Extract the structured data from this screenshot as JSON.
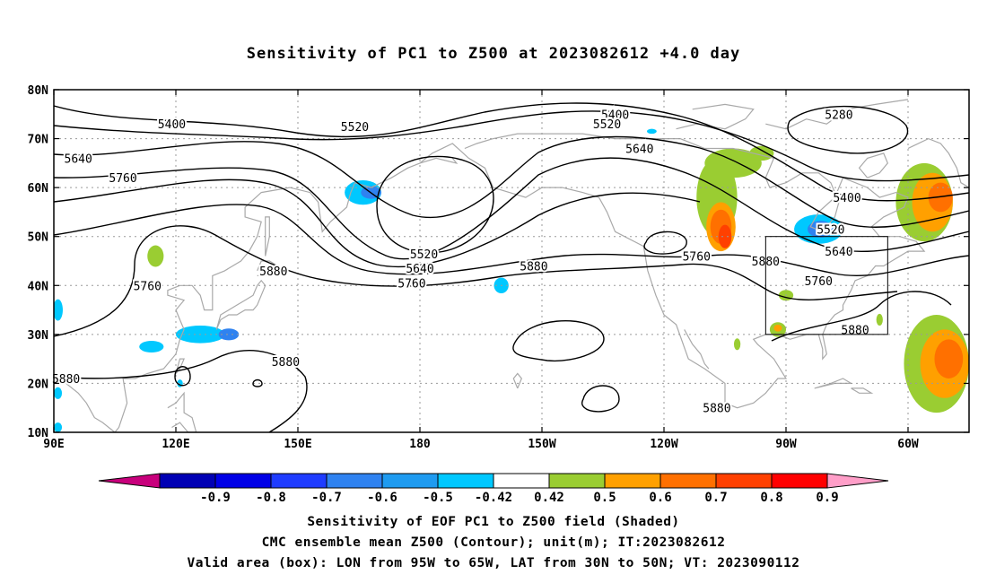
{
  "title": "Sensitivity of PC1 to Z500 at 2023082612 +4.0 day",
  "map": {
    "lat_axis": [
      "80N",
      "70N",
      "60N",
      "50N",
      "40N",
      "30N",
      "20N",
      "10N"
    ],
    "lon_axis": [
      "90E",
      "120E",
      "150E",
      "180",
      "150W",
      "120W",
      "90W",
      "60W"
    ],
    "lon_range": [
      90,
      315
    ],
    "lat_range": [
      10,
      80
    ],
    "valid_box": {
      "lon_min": 265,
      "lon_max": 295,
      "lat_min": 30,
      "lat_max": 50
    },
    "contour_color": "#000000",
    "coastline_color": "#a9a9a9",
    "grid": "dotted"
  },
  "chart_data": {
    "type": "heatmap",
    "shaded_field": "Sensitivity of EOF PC1 to Z500 field",
    "contour_field": "CMC ensemble mean Z500",
    "contour_labels": [
      {
        "value": "5400",
        "lon": 119,
        "lat": 73
      },
      {
        "value": "5520",
        "lon": 164,
        "lat": 72.5
      },
      {
        "value": "5640",
        "lon": 96,
        "lat": 66
      },
      {
        "value": "5760",
        "lon": 107,
        "lat": 62
      },
      {
        "value": "5760",
        "lon": 113,
        "lat": 40
      },
      {
        "value": "5880",
        "lon": 144,
        "lat": 43
      },
      {
        "value": "5880",
        "lon": 93,
        "lat": 21
      },
      {
        "value": "5880",
        "lon": 147,
        "lat": 24.5
      },
      {
        "value": "5520",
        "lon": 181,
        "lat": 46.5
      },
      {
        "value": "5640",
        "lon": 180,
        "lat": 43.5
      },
      {
        "value": "5760",
        "lon": 178,
        "lat": 40.5
      },
      {
        "value": "5880",
        "lon": 208,
        "lat": 44
      },
      {
        "value": "5400",
        "lon": 228,
        "lat": 75
      },
      {
        "value": "5520",
        "lon": 226,
        "lat": 73
      },
      {
        "value": "5640",
        "lon": 234,
        "lat": 68
      },
      {
        "value": "5280",
        "lon": 283,
        "lat": 75
      },
      {
        "value": "5400",
        "lon": 285,
        "lat": 58
      },
      {
        "value": "5520",
        "lon": 281,
        "lat": 51.5
      },
      {
        "value": "5640",
        "lon": 283,
        "lat": 47
      },
      {
        "value": "5760",
        "lon": 278,
        "lat": 41
      },
      {
        "value": "5880",
        "lon": 287,
        "lat": 31
      },
      {
        "value": "5760",
        "lon": 248,
        "lat": 46
      },
      {
        "value": "5880",
        "lon": 265,
        "lat": 45
      },
      {
        "value": "5880",
        "lon": 253,
        "lat": 15
      }
    ],
    "shaded_regions": [
      {
        "value": -0.45,
        "lon": 166,
        "lat": 59,
        "rlon": 4.5,
        "rlat": 2.5
      },
      {
        "value": -0.55,
        "lon": 168,
        "lat": 59,
        "rlon": 2.5,
        "rlat": 1.3
      },
      {
        "value": -0.45,
        "lon": 126,
        "lat": 30,
        "rlon": 6,
        "rlat": 1.8
      },
      {
        "value": -0.55,
        "lon": 133,
        "lat": 30,
        "rlon": 2.5,
        "rlat": 1.2
      },
      {
        "value": -0.45,
        "lon": 114,
        "lat": 27.5,
        "rlon": 3,
        "rlat": 1.2
      },
      {
        "value": -0.45,
        "lon": 200,
        "lat": 40,
        "rlon": 1.8,
        "rlat": 1.6
      },
      {
        "value": -0.45,
        "lon": 91,
        "lat": 35,
        "rlon": 1.2,
        "rlat": 2.2
      },
      {
        "value": -0.45,
        "lon": 91,
        "lat": 18,
        "rlon": 1,
        "rlat": 1.2
      },
      {
        "value": -0.45,
        "lon": 91,
        "lat": 11,
        "rlon": 1,
        "rlat": 1
      },
      {
        "value": -0.45,
        "lon": 121,
        "lat": 20,
        "rlon": 0.7,
        "rlat": 0.8
      },
      {
        "value": -0.45,
        "lon": 278,
        "lat": 51.5,
        "rlon": 6,
        "rlat": 3
      },
      {
        "value": -0.55,
        "lon": 278.5,
        "lat": 51.5,
        "rlon": 3.2,
        "rlat": 1.7
      },
      {
        "value": -0.45,
        "lon": 237,
        "lat": 71.5,
        "rlon": 1.2,
        "rlat": 0.5
      },
      {
        "value": 0.45,
        "lon": 253,
        "lat": 58,
        "rlon": 5,
        "rlat": 8
      },
      {
        "value": 0.45,
        "lon": 257,
        "lat": 65,
        "rlon": 7,
        "rlat": 3
      },
      {
        "value": 0.45,
        "lon": 264,
        "lat": 67,
        "rlon": 3,
        "rlat": 1.5
      },
      {
        "value": 0.55,
        "lon": 254,
        "lat": 52,
        "rlon": 3.6,
        "rlat": 5
      },
      {
        "value": 0.65,
        "lon": 254,
        "lat": 52,
        "rlon": 2.6,
        "rlat": 3.5
      },
      {
        "value": 0.75,
        "lon": 255,
        "lat": 50,
        "rlon": 1.6,
        "rlat": 2.4
      },
      {
        "value": 0.45,
        "lon": 304,
        "lat": 57,
        "rlon": 7,
        "rlat": 8
      },
      {
        "value": 0.55,
        "lon": 306,
        "lat": 57,
        "rlon": 5,
        "rlat": 6
      },
      {
        "value": 0.65,
        "lon": 308,
        "lat": 58,
        "rlon": 3,
        "rlat": 3
      },
      {
        "value": 0.45,
        "lon": 307,
        "lat": 24,
        "rlon": 8,
        "rlat": 10
      },
      {
        "value": 0.55,
        "lon": 309,
        "lat": 24,
        "rlon": 6,
        "rlat": 7
      },
      {
        "value": 0.65,
        "lon": 310,
        "lat": 25,
        "rlon": 3.5,
        "rlat": 4
      },
      {
        "value": 0.45,
        "lon": 270,
        "lat": 38,
        "rlon": 1.8,
        "rlat": 1.1
      },
      {
        "value": 0.45,
        "lon": 268,
        "lat": 31,
        "rlon": 2,
        "rlat": 1.5
      },
      {
        "value": 0.55,
        "lon": 268,
        "lat": 31.3,
        "rlon": 1,
        "rlat": 0.7
      },
      {
        "value": 0.45,
        "lon": 258,
        "lat": 28,
        "rlon": 0.8,
        "rlat": 1.2
      },
      {
        "value": 0.45,
        "lon": 293,
        "lat": 33,
        "rlon": 0.8,
        "rlat": 1.2
      },
      {
        "value": 0.45,
        "lon": 115,
        "lat": 46,
        "rlon": 2,
        "rlat": 2.2
      }
    ]
  },
  "colorbar": {
    "labels": [
      "-0.9",
      "-0.8",
      "-0.7",
      "-0.6",
      "-0.5",
      "-0.42",
      "0.42",
      "0.5",
      "0.6",
      "0.7",
      "0.8",
      "0.9"
    ],
    "colors": [
      "#c8007c",
      "#0000b4",
      "#0000e6",
      "#1f3cff",
      "#2f82f0",
      "#1f9bf0",
      "#00c8ff",
      "#ffffff",
      "#9acd32",
      "#ffa000",
      "#ff7000",
      "#ff4000",
      "#ff0000",
      "#ff9ec8"
    ]
  },
  "footer": {
    "line1": "Sensitivity of EOF PC1 to Z500 field (Shaded)",
    "line2": "CMC ensemble mean Z500 (Contour); unit(m); IT:2023082612",
    "line3": "Valid area (box): LON from 95W to 65W, LAT from 30N to 50N; VT: 2023090112"
  }
}
